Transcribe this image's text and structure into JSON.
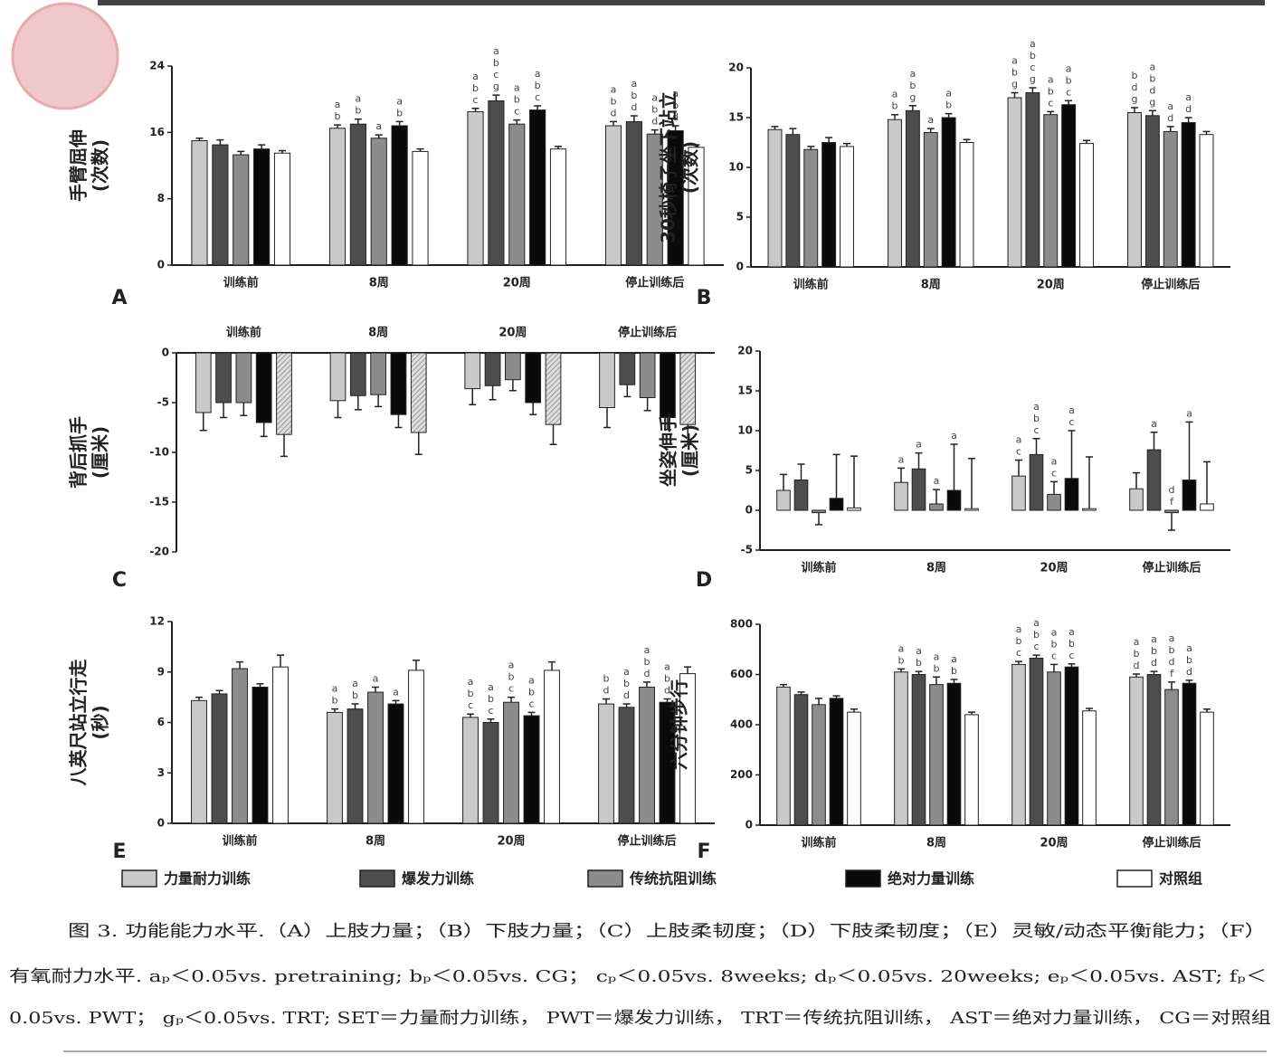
{
  "legend": [
    {
      "name": "力量耐力训练",
      "color": "#c9c9c9"
    },
    {
      "name": "爆发力训练",
      "color": "#4d4d4d"
    },
    {
      "name": "传统抗阻训练",
      "color": "#8c8c8c"
    },
    {
      "name": "绝对力量训练",
      "color": "#0a0a0a"
    },
    {
      "name": "对照组",
      "color": "#ffffff"
    }
  ],
  "caption": [
    "图 3. 功能能力水平.（A）上肢力量；（B）下肢力量；（C）上肢柔韧度；（D）下肢柔韧度；（E）灵敏/动态平衡能力；（F）",
    "有氧耐力水平. aₚ＜0.05vs. pretraining; bₚ＜0.05vs. CG； cₚ＜0.05vs. 8weeks; dₚ＜0.05vs. 20weeks; eₚ＜0.05vs. AST; fₚ＜",
    "0.05vs. PWT； gₚ＜0.05vs. TRT; SET＝力量耐力训练， PWT＝爆发力训练， TRT＝传统抗阻训练， AST＝绝对力量训练， CG＝对照组"
  ],
  "chart_data": [
    {
      "type": "bar",
      "label": "A",
      "ylabel": [
        "手臂屈伸",
        "(次数)"
      ],
      "categories": [
        "训练前",
        "8周",
        "20周",
        "停止训练后"
      ],
      "ylim": [
        0,
        24
      ],
      "yticks": [
        0,
        8,
        16,
        24
      ],
      "series": [
        {
          "values": [
            15,
            16.5,
            18.5,
            16.8
          ],
          "errors": [
            0.3,
            0.4,
            0.4,
            0.5
          ],
          "letters": [
            [],
            [
              "a",
              "b"
            ],
            [
              "a",
              "b",
              "c"
            ],
            [
              "a",
              "b",
              "d"
            ]
          ]
        },
        {
          "values": [
            14.5,
            17,
            19.8,
            17.3
          ],
          "errors": [
            0.6,
            0.6,
            0.7,
            0.7
          ],
          "letters": [
            [],
            [
              "a",
              "b"
            ],
            [
              "a",
              "b",
              "c",
              "g"
            ],
            [
              "a",
              "b",
              "d"
            ]
          ]
        },
        {
          "values": [
            13.3,
            15.3,
            17,
            15.8
          ],
          "errors": [
            0.4,
            0.4,
            0.5,
            0.5
          ],
          "letters": [
            [],
            [
              "a"
            ],
            [
              "a",
              "b",
              "c"
            ],
            [
              "a",
              "b",
              "d"
            ]
          ]
        },
        {
          "values": [
            14,
            16.8,
            18.7,
            16.2
          ],
          "errors": [
            0.5,
            0.5,
            0.5,
            0.6
          ],
          "letters": [
            [],
            [
              "a",
              "b"
            ],
            [
              "a",
              "b",
              "c"
            ],
            [
              "a",
              "b",
              "d"
            ]
          ]
        },
        {
          "values": [
            13.5,
            13.7,
            14,
            14.2
          ],
          "errors": [
            0.3,
            0.3,
            0.3,
            0.3
          ]
        }
      ]
    },
    {
      "type": "bar",
      "label": "B",
      "ylabel": [
        "30秒椅子坐下站立",
        "(次数)"
      ],
      "categories": [
        "训练前",
        "8周",
        "20周",
        "停止训练后"
      ],
      "ylim": [
        0,
        20
      ],
      "yticks": [
        0,
        5,
        10,
        15,
        20
      ],
      "series": [
        {
          "values": [
            13.8,
            14.8,
            17,
            15.5
          ],
          "errors": [
            0.3,
            0.5,
            0.5,
            0.5
          ],
          "letters": [
            [],
            [
              "a",
              "b"
            ],
            [
              "a",
              "b",
              "g"
            ],
            [
              "b",
              "d",
              "g"
            ]
          ]
        },
        {
          "values": [
            13.3,
            15.7,
            17.5,
            15.2
          ],
          "errors": [
            0.6,
            0.5,
            0.5,
            0.5
          ],
          "letters": [
            [],
            [
              "a",
              "b",
              "g"
            ],
            [
              "a",
              "b",
              "c",
              "g"
            ],
            [
              "a",
              "b",
              "d",
              "g"
            ]
          ]
        },
        {
          "values": [
            11.8,
            13.5,
            15.3,
            13.6
          ],
          "errors": [
            0.3,
            0.4,
            0.3,
            0.5
          ],
          "letters": [
            [],
            [
              "a"
            ],
            [
              "a",
              "b",
              "c"
            ],
            [
              "a",
              "d"
            ]
          ]
        },
        {
          "values": [
            12.5,
            15,
            16.3,
            14.5
          ],
          "errors": [
            0.5,
            0.4,
            0.4,
            0.5
          ],
          "letters": [
            [],
            [
              "a",
              "b"
            ],
            [
              "a",
              "b",
              "c"
            ],
            [
              "a",
              "d"
            ]
          ]
        },
        {
          "values": [
            12.1,
            12.5,
            12.4,
            13.3
          ],
          "errors": [
            0.3,
            0.3,
            0.3,
            0.3
          ]
        }
      ]
    },
    {
      "type": "bar",
      "label": "C",
      "ylabel": [
        "背后抓手",
        "(厘米)"
      ],
      "categories": [
        "训练前",
        "8周",
        "20周",
        "停止训练后"
      ],
      "ylim": [
        -20,
        0
      ],
      "yticks": [
        0,
        -5,
        -10,
        -15,
        -20
      ],
      "series": [
        {
          "values": [
            -6,
            -4.8,
            -3.6,
            -5.5
          ],
          "errors": [
            1.8,
            1.7,
            1.6,
            2
          ]
        },
        {
          "values": [
            -5,
            -4.3,
            -3.3,
            -3.2
          ],
          "errors": [
            1.5,
            1.4,
            1.4,
            1.2
          ]
        },
        {
          "values": [
            -5,
            -4.2,
            -2.7,
            -4.5
          ],
          "errors": [
            1.3,
            1.2,
            1.1,
            1.3
          ]
        },
        {
          "values": [
            -7,
            -6.2,
            -5,
            -6.5
          ],
          "errors": [
            1.4,
            1.3,
            1.2,
            1.2
          ]
        },
        {
          "values": [
            -8.2,
            -8,
            -7.2,
            -7.2
          ],
          "errors": [
            2.2,
            2.2,
            2,
            2
          ],
          "pattern": "hatch"
        }
      ]
    },
    {
      "type": "bar",
      "label": "D",
      "ylabel": [
        "坐姿伸手",
        "(厘米)"
      ],
      "categories": [
        "训练前",
        "8周",
        "20周",
        "停止训练后"
      ],
      "ylim": [
        -5,
        20
      ],
      "yticks": [
        -5,
        0,
        5,
        10,
        15,
        20
      ],
      "series": [
        {
          "values": [
            2.5,
            3.5,
            4.3,
            2.7
          ],
          "errors": [
            2,
            1.8,
            2,
            2
          ],
          "letters": [
            [],
            [
              "a"
            ],
            [
              "a",
              "c"
            ],
            []
          ]
        },
        {
          "values": [
            3.8,
            5.2,
            7,
            7.6
          ],
          "errors": [
            2,
            2,
            2,
            2.2
          ],
          "letters": [
            [],
            [
              "a"
            ],
            [
              "a",
              "b",
              "c"
            ],
            [
              "a"
            ]
          ]
        },
        {
          "values": [
            -0.3,
            0.8,
            2,
            -0.3
          ],
          "errors": [
            1.5,
            1.8,
            1.6,
            2.2
          ],
          "letters": [
            [],
            [
              "a"
            ],
            [
              "a",
              "c"
            ],
            [
              "d",
              "f"
            ]
          ]
        },
        {
          "values": [
            1.5,
            2.5,
            4,
            3.8
          ],
          "errors": [
            5.5,
            5.8,
            6,
            7.3
          ],
          "letters": [
            [],
            [
              "a"
            ],
            [
              "a",
              "c"
            ],
            [
              "a"
            ]
          ]
        },
        {
          "values": [
            0.3,
            0.2,
            0.2,
            0.8
          ],
          "errors": [
            6.5,
            6.3,
            6.5,
            5.3
          ]
        }
      ]
    },
    {
      "type": "bar",
      "label": "E",
      "ylabel": [
        "八英尺站立行走",
        "(秒)"
      ],
      "categories": [
        "训练前",
        "8周",
        "20周",
        "停止训练后"
      ],
      "ylim": [
        0,
        12
      ],
      "yticks": [
        0,
        3,
        6,
        9,
        12
      ],
      "series": [
        {
          "values": [
            7.3,
            6.6,
            6.3,
            7.1
          ],
          "errors": [
            0.2,
            0.2,
            0.2,
            0.3
          ],
          "letters": [
            [],
            [
              "a",
              "b"
            ],
            [
              "a",
              "b",
              "c"
            ],
            [
              "b",
              "d"
            ]
          ]
        },
        {
          "values": [
            7.7,
            6.8,
            6.0,
            6.9
          ],
          "errors": [
            0.2,
            0.3,
            0.2,
            0.2
          ],
          "letters": [
            [],
            [
              "a",
              "b"
            ],
            [
              "a",
              "b",
              "c"
            ],
            [
              "a",
              "b",
              "d"
            ]
          ]
        },
        {
          "values": [
            9.2,
            7.8,
            7.2,
            8.1
          ],
          "errors": [
            0.4,
            0.3,
            0.3,
            0.3
          ],
          "letters": [
            [],
            [
              "a"
            ],
            [
              "a",
              "b",
              "c"
            ],
            [
              "a",
              "b",
              "d"
            ]
          ]
        },
        {
          "values": [
            8.1,
            7.1,
            6.4,
            7.2
          ],
          "errors": [
            0.2,
            0.2,
            0.2,
            0.2
          ],
          "letters": [
            [],
            [
              "a"
            ],
            [
              "a",
              "b",
              "c"
            ],
            [
              "a",
              "b",
              "d"
            ]
          ]
        },
        {
          "values": [
            9.3,
            9.1,
            9.1,
            8.9
          ],
          "errors": [
            0.7,
            0.6,
            0.5,
            0.4
          ]
        }
      ]
    },
    {
      "type": "bar",
      "label": "F",
      "ylabel": [
        "六分钟步行"
      ],
      "categories": [
        "训练前",
        "8周",
        "20周",
        "停止训练后"
      ],
      "ylim": [
        0,
        800
      ],
      "yticks": [
        0,
        200,
        400,
        600,
        800
      ],
      "series": [
        {
          "values": [
            550,
            610,
            640,
            590
          ],
          "errors": [
            10,
            12,
            12,
            12
          ],
          "letters": [
            [],
            [
              "a",
              "b"
            ],
            [
              "a",
              "b",
              "c"
            ],
            [
              "a",
              "b",
              "d"
            ]
          ]
        },
        {
          "values": [
            520,
            600,
            665,
            600
          ],
          "errors": [
            10,
            12,
            12,
            12
          ],
          "letters": [
            [],
            [
              "a",
              "b"
            ],
            [
              "a",
              "b",
              "c"
            ],
            [
              "a",
              "b",
              "d"
            ]
          ]
        },
        {
          "values": [
            480,
            560,
            610,
            540
          ],
          "errors": [
            25,
            30,
            30,
            30
          ],
          "letters": [
            [],
            [
              "a",
              "b"
            ],
            [
              "a",
              "b",
              "c"
            ],
            [
              "a",
              "b",
              "d",
              "f"
            ]
          ]
        },
        {
          "values": [
            505,
            565,
            630,
            565
          ],
          "errors": [
            10,
            15,
            12,
            12
          ],
          "letters": [
            [],
            [
              "a",
              "b"
            ],
            [
              "a",
              "b",
              "c"
            ],
            [
              "a",
              "b",
              "d"
            ]
          ]
        },
        {
          "values": [
            450,
            440,
            455,
            450
          ],
          "errors": [
            12,
            10,
            10,
            12
          ]
        }
      ]
    }
  ]
}
